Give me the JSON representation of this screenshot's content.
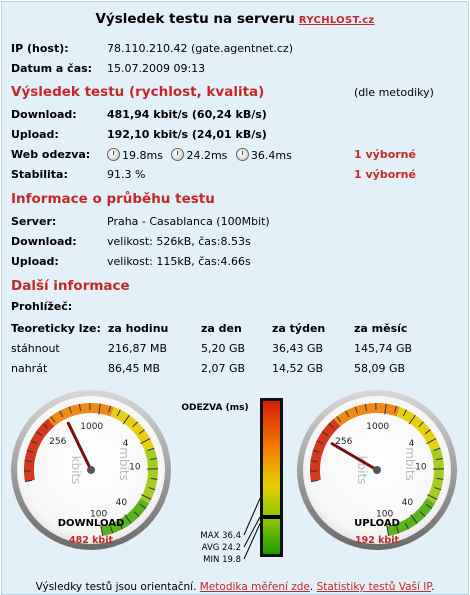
{
  "title": {
    "text": "Výsledek testu na serveru",
    "brand": "RYCHLOST.cz"
  },
  "info": [
    {
      "label": "IP (host):",
      "value": "78.110.210.42 (gate.agentnet.cz)"
    },
    {
      "label": "Datum a čas:",
      "value": "15.07.2009 09:13"
    }
  ],
  "results": {
    "heading": "Výsledek testu (rychlost, kvalita)",
    "method_note": "(dle metodiky)",
    "download": {
      "label": "Download:",
      "value": "481,94 kbit/s (60,24 kB/s)"
    },
    "upload": {
      "label": "Upload:",
      "value": "192,10 kbit/s (24,01 kB/s)"
    },
    "web": {
      "label": "Web odezva:",
      "values": [
        "19.8ms",
        "24.2ms",
        "36.4ms"
      ],
      "rating": "1 výborné"
    },
    "stability": {
      "label": "Stabilita:",
      "value": "91.3 %",
      "rating": "1 výborné"
    }
  },
  "progress": {
    "heading": "Informace o průběhu testu",
    "server": {
      "label": "Server:",
      "value": "Praha - Casablanca (100Mbit)"
    },
    "download": {
      "label": "Download:",
      "value": "velikost: 526kB, čas:8.53s"
    },
    "upload": {
      "label": "Upload:",
      "value": "velikost: 115kB, čas:4.66s"
    }
  },
  "more": {
    "heading": "Další informace",
    "browser_label": "Prohlížeč:",
    "table": {
      "headers": [
        "Teoreticky lze:",
        "za hodinu",
        "za den",
        "za týden",
        "za měsíc"
      ],
      "rows": [
        [
          "stáhnout",
          "216,87 MB",
          "5,20 GB",
          "36,43 GB",
          "145,74 GB"
        ],
        [
          "nahrát",
          "86,45 MB",
          "2,07 GB",
          "14,52 GB",
          "58,09 GB"
        ]
      ]
    }
  },
  "gauges": {
    "ticks": [
      "256",
      "1000",
      "4",
      "10",
      "40",
      "100"
    ],
    "unit": "kbits",
    "unit_right": "mbits",
    "download": {
      "label": "DOWNLOAD",
      "reading": "482 kbit",
      "kbit": 482
    },
    "upload": {
      "label": "UPLOAD",
      "reading": "192 kbit",
      "kbit": 192
    }
  },
  "latency": {
    "title": "ODEZVA (ms)",
    "max": "MAX 36.4",
    "avg": "AVG 24.2",
    "min": "MIN 19.8",
    "max_ms": 36.4,
    "avg_ms": 24.2,
    "min_ms": 19.8
  },
  "footer": {
    "text": "Výsledky testů jsou orientační.",
    "link1": "Metodika měření zde",
    "sep": ".",
    "link2": "Statistiky testů Vaší IP",
    "end": "."
  },
  "colors": {
    "accent": "#c62828",
    "panel": "#e3f0f7"
  }
}
